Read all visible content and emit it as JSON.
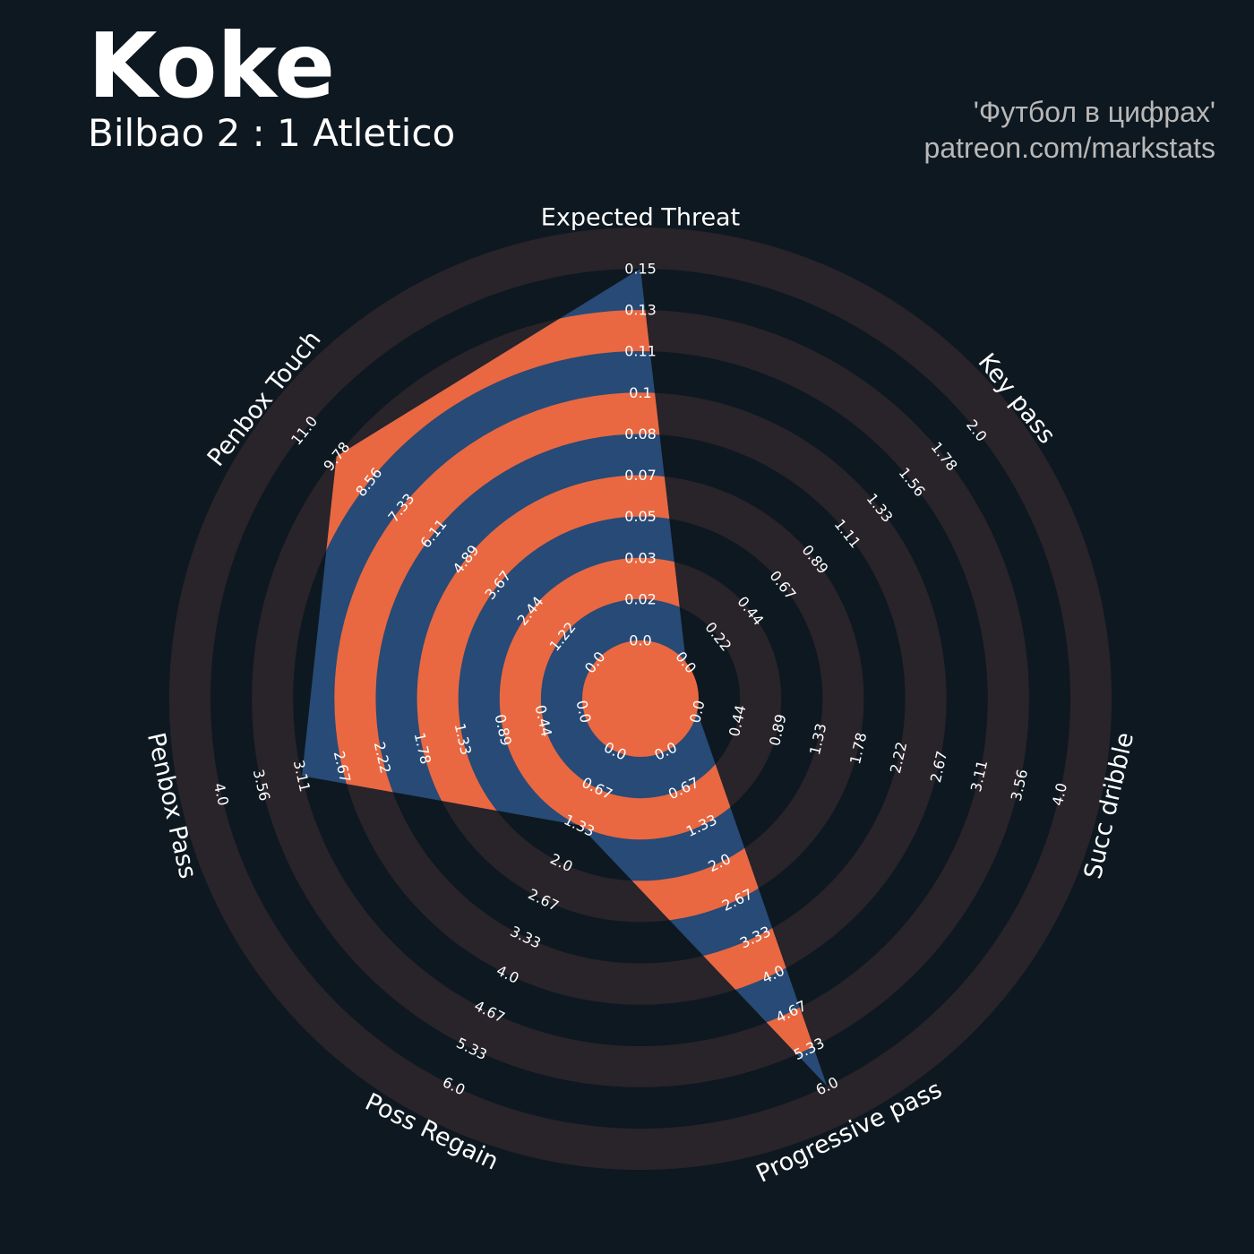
{
  "header": {
    "title": "Koke",
    "subtitle": "Bilbao 2 : 1 Atletico",
    "credit_line1": "'Футбол в цифрах'",
    "credit_line2": "patreon.com/markstats"
  },
  "colors": {
    "background": "#0e1820",
    "ring": "#29232a",
    "polygon": "#274a76",
    "stripe": "#e96841",
    "text": "#ffffff",
    "credit": "#b8b8b8"
  },
  "chart_data": {
    "type": "radar",
    "params": [
      "Expected Threat",
      "Key pass",
      "Succ dribble",
      "Progressive pass",
      "Poss Regain",
      "Penbox Pass",
      "Penbox Touch"
    ],
    "ranges": [
      [
        0.0,
        0.15
      ],
      [
        0.0,
        2.0
      ],
      [
        0.0,
        4.0
      ],
      [
        0.0,
        6.0
      ],
      [
        0.0,
        6.0
      ],
      [
        0.0,
        4.0
      ],
      [
        0.0,
        11.0
      ]
    ],
    "values": [
      0.15,
      0.0,
      0.0,
      6.0,
      1.33,
      3.11,
      9.78
    ],
    "tick_labels": [
      [
        "0.0",
        "0.02",
        "0.03",
        "0.05",
        "0.07",
        "0.08",
        "0.1",
        "0.11",
        "0.13",
        "0.15"
      ],
      [
        "0.0",
        "0.22",
        "0.44",
        "0.67",
        "0.89",
        "1.11",
        "1.33",
        "1.56",
        "1.78",
        "2.0"
      ],
      [
        "0.0",
        "0.44",
        "0.89",
        "1.33",
        "1.78",
        "2.22",
        "2.67",
        "3.11",
        "3.56",
        "4.0"
      ],
      [
        "0.0",
        "0.67",
        "1.33",
        "2.0",
        "2.67",
        "3.33",
        "4.0",
        "4.67",
        "5.33",
        "6.0"
      ],
      [
        "0.0",
        "0.67",
        "1.33",
        "2.0",
        "2.67",
        "3.33",
        "4.0",
        "4.67",
        "5.33",
        "6.0"
      ],
      [
        "0.0",
        "0.44",
        "0.89",
        "1.33",
        "1.78",
        "2.22",
        "2.67",
        "3.11",
        "3.56",
        "4.0"
      ],
      [
        "0.0",
        "1.22",
        "2.44",
        "3.67",
        "4.89",
        "6.11",
        "7.33",
        "8.56",
        "9.78",
        "11.0"
      ]
    ]
  }
}
